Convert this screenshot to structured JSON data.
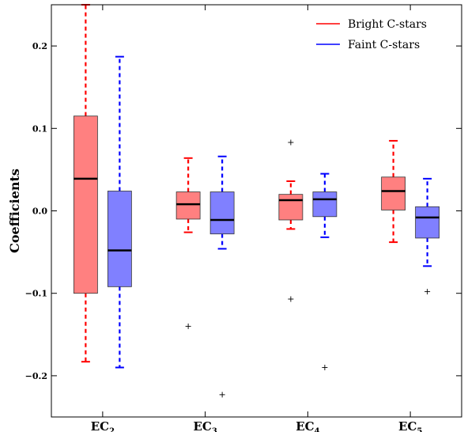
{
  "chart_data": {
    "type": "box",
    "title": "",
    "xlabel": "",
    "ylabel": "Coefficients",
    "ylim": [
      -0.25,
      0.25
    ],
    "yticks": [
      -0.2,
      -0.1,
      0.0,
      0.1,
      0.2
    ],
    "ytick_labels": [
      "−0.2",
      "−0.1",
      "0.0",
      "0.1",
      "0.2"
    ],
    "grid": false,
    "legend_position": "top-right",
    "categories": [
      {
        "main": "EC",
        "sub": "2"
      },
      {
        "main": "EC",
        "sub": "3"
      },
      {
        "main": "EC",
        "sub": "4"
      },
      {
        "main": "EC",
        "sub": "5"
      }
    ],
    "series": [
      {
        "name": "Bright C-stars",
        "color": "#ff0000",
        "fill": "#ff8080",
        "boxes": [
          {
            "whislo": -0.183,
            "q1": -0.1,
            "med": 0.039,
            "q3": 0.115,
            "whishi": 0.25,
            "fliers": []
          },
          {
            "whislo": -0.026,
            "q1": -0.01,
            "med": 0.008,
            "q3": 0.023,
            "whishi": 0.064,
            "fliers": [
              -0.14
            ]
          },
          {
            "whislo": -0.022,
            "q1": -0.011,
            "med": 0.013,
            "q3": 0.02,
            "whishi": 0.036,
            "fliers": [
              0.083,
              -0.107
            ]
          },
          {
            "whislo": -0.038,
            "q1": 0.001,
            "med": 0.024,
            "q3": 0.041,
            "whishi": 0.085,
            "fliers": []
          }
        ]
      },
      {
        "name": "Faint C-stars",
        "color": "#0000ff",
        "fill": "#8080ff",
        "boxes": [
          {
            "whislo": -0.19,
            "q1": -0.092,
            "med": -0.048,
            "q3": 0.024,
            "whishi": 0.187,
            "fliers": []
          },
          {
            "whislo": -0.046,
            "q1": -0.028,
            "med": -0.011,
            "q3": 0.023,
            "whishi": 0.066,
            "fliers": [
              -0.223
            ]
          },
          {
            "whislo": -0.032,
            "q1": -0.007,
            "med": 0.014,
            "q3": 0.023,
            "whishi": 0.045,
            "fliers": [
              -0.19
            ]
          },
          {
            "whislo": -0.067,
            "q1": -0.033,
            "med": -0.008,
            "q3": 0.005,
            "whishi": 0.039,
            "fliers": [
              -0.098
            ]
          }
        ]
      }
    ]
  }
}
